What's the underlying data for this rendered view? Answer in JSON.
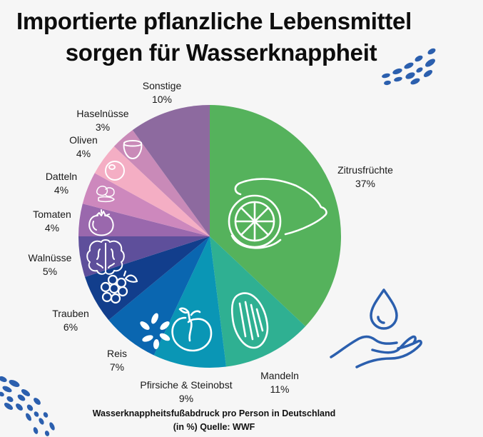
{
  "title": {
    "line1": "Importierte pflanzliche Lebensmittel",
    "line2": "sorgen für Wasserknappheit"
  },
  "footer": {
    "line1": "Wasserknappheitsfußabdruck pro Person in Deutschland",
    "line2": "(in %) Quelle: WWF"
  },
  "chart_data": {
    "type": "pie",
    "title": "Importierte pflanzliche Lebensmittel sorgen für Wasserknappheit",
    "subtitle": "Wasserknappheitsfußabdruck pro Person in Deutschland (in %) Quelle: WWF",
    "start_angle_deg": 0,
    "direction": "clockwise",
    "center": [
      294,
      331
    ],
    "radius": 184,
    "categories": [
      "Zitrusfrüchte",
      "Mandeln",
      "Pfirsiche & Steinobst",
      "Reis",
      "Trauben",
      "Walnüsse",
      "Tomaten",
      "Datteln",
      "Oliven",
      "Haselnüsse",
      "Sonstige"
    ],
    "values": [
      37,
      11,
      9,
      7,
      6,
      5,
      4,
      4,
      4,
      3,
      10
    ],
    "unit": "%",
    "slices": [
      {
        "name": "Zitrusfrüchte",
        "value": 37,
        "label": "37%",
        "color": "#55b25c",
        "icon": "lemon-icon",
        "label_pos": [
          512,
          229
        ]
      },
      {
        "name": "Mandeln",
        "value": 11,
        "label": "11%",
        "color": "#2fb092",
        "icon": "almond-icon",
        "label_pos": [
          392,
          517
        ]
      },
      {
        "name": "Pfirsiche & Steinobst",
        "value": 9,
        "label": "9%",
        "color": "#0a96b5",
        "icon": "peach-icon",
        "label_pos": [
          261,
          530
        ]
      },
      {
        "name": "Reis",
        "value": 7,
        "label": "7%",
        "color": "#0a66b0",
        "icon": "rice-icon",
        "label_pos": [
          164,
          486
        ]
      },
      {
        "name": "Trauben",
        "value": 6,
        "label": "6%",
        "color": "#123e8c",
        "icon": "grapes-icon",
        "label_pos": [
          99,
          430
        ]
      },
      {
        "name": "Walnüsse",
        "value": 5,
        "label": "5%",
        "color": "#5e4f9b",
        "icon": "walnut-icon",
        "label_pos": [
          70,
          352
        ]
      },
      {
        "name": "Tomaten",
        "value": 4,
        "label": "4%",
        "color": "#9a68ad",
        "icon": "tomato-icon",
        "label_pos": [
          73,
          291
        ]
      },
      {
        "name": "Datteln",
        "value": 4,
        "label": "4%",
        "color": "#cd88bd",
        "icon": "dates-icon",
        "label_pos": [
          86,
          238
        ]
      },
      {
        "name": "Oliven",
        "value": 4,
        "label": "4%",
        "color": "#f4aec4",
        "icon": "olive-icon",
        "label_pos": [
          117,
          187
        ]
      },
      {
        "name": "Haselnüsse",
        "value": 3,
        "label": "3%",
        "color": "#c98ab8",
        "icon": "hazelnut-icon",
        "label_pos": [
          144,
          150
        ]
      },
      {
        "name": "Sonstige",
        "value": 10,
        "label": "10%",
        "color": "#8d6a9f",
        "icon": "",
        "label_pos": [
          227,
          111
        ]
      }
    ],
    "legend": "none",
    "labels": "outside"
  },
  "decorations": {
    "accent_color": "#2b5fae",
    "water_hand_icon": "water-drop-hand-icon"
  }
}
